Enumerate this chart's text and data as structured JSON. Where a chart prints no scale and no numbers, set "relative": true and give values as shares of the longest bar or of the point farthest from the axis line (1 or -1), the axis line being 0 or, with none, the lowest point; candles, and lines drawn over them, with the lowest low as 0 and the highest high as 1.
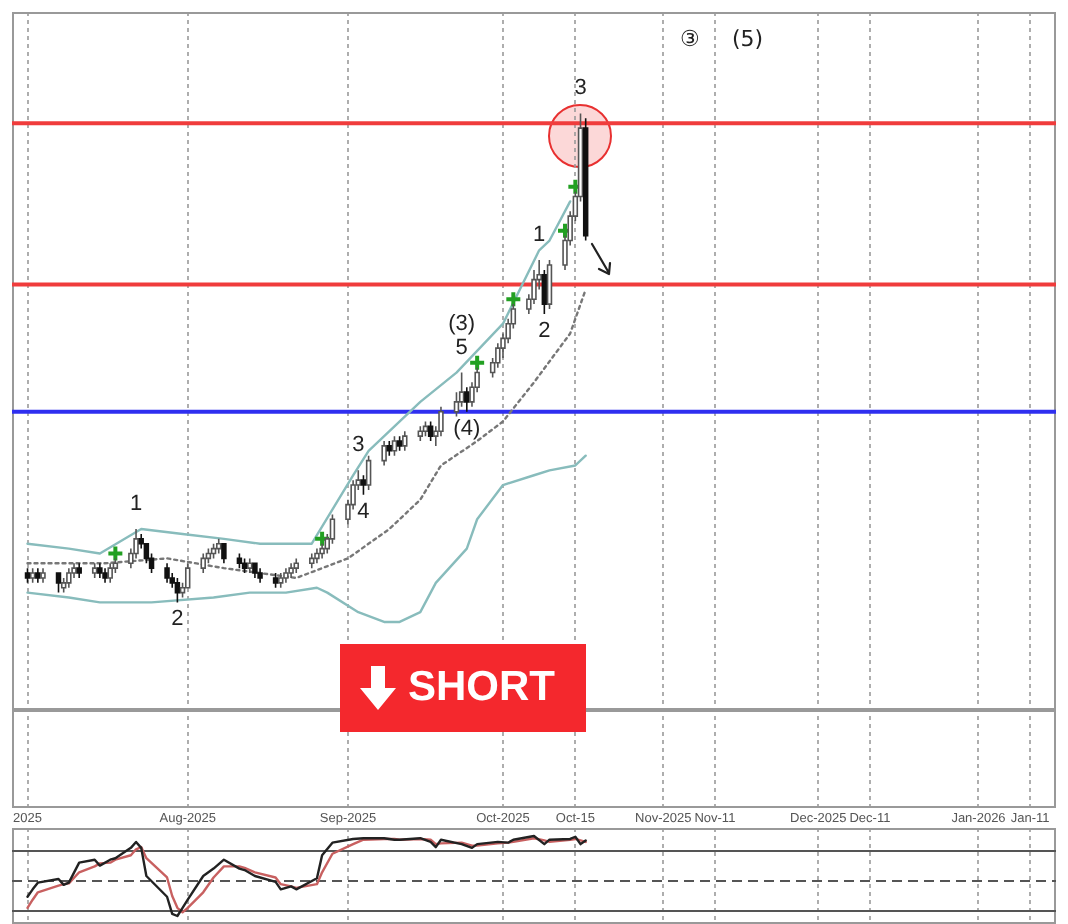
{
  "chart_data": [
    {
      "type": "candlestick",
      "relative": true,
      "x": [
        "2025-07-01",
        "2025-07-02",
        "2025-07-03",
        "2025-07-04",
        "2025-07-07",
        "2025-07-08",
        "2025-07-09",
        "2025-07-10",
        "2025-07-11",
        "2025-07-14",
        "2025-07-15",
        "2025-07-16",
        "2025-07-17",
        "2025-07-18",
        "2025-07-21",
        "2025-07-22",
        "2025-07-23",
        "2025-07-24",
        "2025-07-25",
        "2025-07-28",
        "2025-07-29",
        "2025-07-30",
        "2025-07-31",
        "2025-08-01",
        "2025-08-04",
        "2025-08-05",
        "2025-08-06",
        "2025-08-07",
        "2025-08-08",
        "2025-08-11",
        "2025-08-12",
        "2025-08-13",
        "2025-08-14",
        "2025-08-15",
        "2025-08-18",
        "2025-08-19",
        "2025-08-20",
        "2025-08-21",
        "2025-08-22",
        "2025-08-25",
        "2025-08-26",
        "2025-08-27",
        "2025-08-28",
        "2025-08-29",
        "2025-09-01",
        "2025-09-02",
        "2025-09-03",
        "2025-09-04",
        "2025-09-05",
        "2025-09-08",
        "2025-09-09",
        "2025-09-10",
        "2025-09-11",
        "2025-09-12",
        "2025-09-15",
        "2025-09-16",
        "2025-09-17",
        "2025-09-18",
        "2025-09-19",
        "2025-09-22",
        "2025-09-23",
        "2025-09-24",
        "2025-09-25",
        "2025-09-26",
        "2025-09-29",
        "2025-09-30",
        "2025-10-01",
        "2025-10-02",
        "2025-10-03",
        "2025-10-06",
        "2025-10-07",
        "2025-10-08",
        "2025-10-09",
        "2025-10-10",
        "2025-10-13",
        "2025-10-14",
        "2025-10-15",
        "2025-10-16",
        "2025-10-17"
      ],
      "ohlc": [
        [
          0.06,
          0.07,
          0.04,
          0.05
        ],
        [
          0.05,
          0.07,
          0.04,
          0.06
        ],
        [
          0.06,
          0.07,
          0.04,
          0.05
        ],
        [
          0.05,
          0.07,
          0.04,
          0.06
        ],
        [
          0.06,
          0.06,
          0.02,
          0.04
        ],
        [
          0.03,
          0.05,
          0.02,
          0.04
        ],
        [
          0.04,
          0.07,
          0.03,
          0.06
        ],
        [
          0.06,
          0.08,
          0.05,
          0.07
        ],
        [
          0.07,
          0.08,
          0.05,
          0.06
        ],
        [
          0.06,
          0.08,
          0.05,
          0.07
        ],
        [
          0.07,
          0.08,
          0.05,
          0.06
        ],
        [
          0.06,
          0.07,
          0.04,
          0.05
        ],
        [
          0.05,
          0.08,
          0.04,
          0.07
        ],
        [
          0.07,
          0.09,
          0.06,
          0.08
        ],
        [
          0.08,
          0.11,
          0.07,
          0.1
        ],
        [
          0.1,
          0.15,
          0.09,
          0.13
        ],
        [
          0.13,
          0.14,
          0.11,
          0.12
        ],
        [
          0.12,
          0.12,
          0.08,
          0.09
        ],
        [
          0.09,
          0.1,
          0.06,
          0.07
        ],
        [
          0.07,
          0.08,
          0.04,
          0.05
        ],
        [
          0.05,
          0.06,
          0.03,
          0.04
        ],
        [
          0.04,
          0.05,
          0.0,
          0.02
        ],
        [
          0.02,
          0.04,
          0.01,
          0.03
        ],
        [
          0.03,
          0.08,
          0.03,
          0.07
        ],
        [
          0.07,
          0.1,
          0.06,
          0.09
        ],
        [
          0.09,
          0.11,
          0.08,
          0.1
        ],
        [
          0.1,
          0.12,
          0.09,
          0.11
        ],
        [
          0.11,
          0.13,
          0.1,
          0.12
        ],
        [
          0.12,
          0.12,
          0.08,
          0.09
        ],
        [
          0.09,
          0.1,
          0.07,
          0.08
        ],
        [
          0.08,
          0.09,
          0.06,
          0.07
        ],
        [
          0.07,
          0.09,
          0.06,
          0.08
        ],
        [
          0.08,
          0.08,
          0.05,
          0.06
        ],
        [
          0.06,
          0.07,
          0.04,
          0.05
        ],
        [
          0.05,
          0.06,
          0.03,
          0.04
        ],
        [
          0.04,
          0.06,
          0.03,
          0.05
        ],
        [
          0.05,
          0.07,
          0.04,
          0.06
        ],
        [
          0.06,
          0.08,
          0.05,
          0.07
        ],
        [
          0.07,
          0.09,
          0.06,
          0.08
        ],
        [
          0.08,
          0.1,
          0.07,
          0.09
        ],
        [
          0.09,
          0.11,
          0.08,
          0.1
        ],
        [
          0.1,
          0.12,
          0.09,
          0.11
        ],
        [
          0.11,
          0.14,
          0.1,
          0.13
        ],
        [
          0.13,
          0.18,
          0.12,
          0.17
        ],
        [
          0.17,
          0.21,
          0.16,
          0.2
        ],
        [
          0.2,
          0.25,
          0.19,
          0.24
        ],
        [
          0.24,
          0.27,
          0.23,
          0.25
        ],
        [
          0.25,
          0.26,
          0.22,
          0.24
        ],
        [
          0.24,
          0.3,
          0.23,
          0.29
        ],
        [
          0.29,
          0.33,
          0.28,
          0.32
        ],
        [
          0.32,
          0.33,
          0.3,
          0.31
        ],
        [
          0.31,
          0.34,
          0.3,
          0.33
        ],
        [
          0.33,
          0.34,
          0.31,
          0.32
        ],
        [
          0.32,
          0.35,
          0.31,
          0.34
        ],
        [
          0.34,
          0.36,
          0.33,
          0.35
        ],
        [
          0.35,
          0.37,
          0.34,
          0.36
        ],
        [
          0.36,
          0.37,
          0.33,
          0.34
        ],
        [
          0.34,
          0.36,
          0.32,
          0.35
        ],
        [
          0.35,
          0.4,
          0.34,
          0.39
        ],
        [
          0.39,
          0.43,
          0.38,
          0.41
        ],
        [
          0.41,
          0.47,
          0.4,
          0.43
        ],
        [
          0.43,
          0.44,
          0.39,
          0.41
        ],
        [
          0.41,
          0.45,
          0.4,
          0.44
        ],
        [
          0.44,
          0.48,
          0.43,
          0.47
        ],
        [
          0.47,
          0.5,
          0.46,
          0.49
        ],
        [
          0.49,
          0.53,
          0.48,
          0.52
        ],
        [
          0.52,
          0.55,
          0.5,
          0.54
        ],
        [
          0.54,
          0.58,
          0.53,
          0.57
        ],
        [
          0.57,
          0.61,
          0.56,
          0.6
        ],
        [
          0.6,
          0.63,
          0.59,
          0.62
        ],
        [
          0.62,
          0.68,
          0.61,
          0.66
        ],
        [
          0.66,
          0.7,
          0.64,
          0.67
        ],
        [
          0.67,
          0.68,
          0.59,
          0.61
        ],
        [
          0.61,
          0.7,
          0.6,
          0.69
        ],
        [
          0.69,
          0.75,
          0.68,
          0.74
        ],
        [
          0.74,
          0.8,
          0.73,
          0.79
        ],
        [
          0.79,
          0.84,
          0.78,
          0.83
        ],
        [
          0.83,
          1.0,
          0.82,
          0.97
        ],
        [
          0.97,
          0.99,
          0.74,
          0.75
        ]
      ],
      "series": [
        {
          "type": "line",
          "color": "#88bcbc",
          "x": [
            "2025-07-01",
            "2025-07-09",
            "2025-07-15",
            "2025-07-23",
            "2025-07-31",
            "2025-08-08",
            "2025-08-15",
            "2025-08-22",
            "2025-08-25",
            "2025-09-02",
            "2025-09-05",
            "2025-09-10",
            "2025-09-15",
            "2025-09-22",
            "2025-10-01",
            "2025-10-08",
            "2025-10-10",
            "2025-10-14"
          ],
          "values": [
            0.12,
            0.11,
            0.1,
            0.15,
            0.14,
            0.13,
            0.12,
            0.12,
            0.12,
            0.26,
            0.31,
            0.36,
            0.41,
            0.47,
            0.57,
            0.72,
            0.74,
            0.82
          ]
        },
        {
          "type": "line",
          "color": "#88bcbc",
          "x": [
            "2025-07-01",
            "2025-07-09",
            "2025-07-15",
            "2025-07-25",
            "2025-08-06",
            "2025-08-13",
            "2025-08-20",
            "2025-08-26",
            "2025-08-28",
            "2025-09-03",
            "2025-09-08",
            "2025-09-11",
            "2025-09-15",
            "2025-09-18",
            "2025-09-24",
            "2025-09-26",
            "2025-10-01",
            "2025-10-07",
            "2025-10-10",
            "2025-10-15",
            "2025-10-17"
          ],
          "values": [
            0.02,
            0.01,
            0.0,
            0.0,
            0.01,
            0.02,
            0.02,
            0.03,
            0.02,
            -0.02,
            -0.04,
            -0.04,
            -0.02,
            0.04,
            0.11,
            0.17,
            0.24,
            0.26,
            0.27,
            0.28,
            0.3
          ]
        },
        {
          "type": "line",
          "color": "#777777",
          "line_style": "dotted",
          "x": [
            "2025-07-01",
            "2025-07-16",
            "2025-07-28",
            "2025-08-08",
            "2025-08-22",
            "2025-09-01",
            "2025-09-09",
            "2025-09-15",
            "2025-09-19",
            "2025-09-26",
            "2025-10-01",
            "2025-10-07",
            "2025-10-14",
            "2025-10-17"
          ],
          "values": [
            0.08,
            0.08,
            0.09,
            0.07,
            0.05,
            0.09,
            0.15,
            0.21,
            0.28,
            0.33,
            0.37,
            0.45,
            0.55,
            0.64
          ]
        },
        {
          "type": "scatter",
          "marker": "cross",
          "color": "#22a022",
          "x": [
            "2025-07-18",
            "2025-08-27",
            "2025-09-26",
            "2025-10-03",
            "2025-10-13",
            "2025-10-15"
          ],
          "values": [
            0.1,
            0.13,
            0.49,
            0.62,
            0.76,
            0.85
          ]
        }
      ],
      "xlim": [
        "2025-06-28",
        "2026-01-16"
      ],
      "xticks": [
        {
          "value": "2025-07-01",
          "label": "2025"
        },
        {
          "value": "2025-08-01",
          "label": "Aug-2025"
        },
        {
          "value": "2025-09-01",
          "label": "Sep-2025"
        },
        {
          "value": "2025-10-01",
          "label": "Oct-2025"
        },
        {
          "value": "2025-10-15",
          "label": "Oct-15"
        },
        {
          "value": "2025-11-01",
          "label": "Nov-2025"
        },
        {
          "value": "2025-11-11",
          "label": "Nov-11"
        },
        {
          "value": "2025-12-01",
          "label": "Dec-2025"
        },
        {
          "value": "2025-12-11",
          "label": "Dec-11"
        },
        {
          "value": "2026-01-01",
          "label": "Jan-2026"
        },
        {
          "value": "2026-01-11",
          "label": "Jan-11"
        }
      ],
      "grid": "x",
      "tick_labels": "x",
      "ref_lines": [
        {
          "axis": "y",
          "value": 0.98,
          "color": "#f03c3c"
        },
        {
          "axis": "y",
          "value": 0.65,
          "color": "#f03c3c"
        },
        {
          "axis": "y",
          "value": 0.39,
          "color": "#2f2ff0"
        },
        {
          "axis": "y",
          "value": -0.22,
          "color": "#999999"
        }
      ],
      "annotations": [
        "SHORT",
        "③",
        "(5)",
        {
          "text": "1",
          "x": "2025-07-22",
          "y": 0.15
        },
        {
          "text": "2",
          "x": "2025-07-30",
          "y": 0.0
        },
        {
          "text": "3",
          "x": "2025-09-03",
          "y": 0.27
        },
        {
          "text": "4",
          "x": "2025-09-04",
          "y": 0.22
        },
        {
          "text": "5",
          "x": "2025-09-23",
          "y": 0.47
        },
        {
          "text": "(3)",
          "x": "2025-09-23",
          "y": 0.47
        },
        {
          "text": "(4)",
          "x": "2025-09-24",
          "y": 0.39
        },
        {
          "text": "1",
          "x": "2025-10-08",
          "y": 0.7
        },
        {
          "text": "2",
          "x": "2025-10-09",
          "y": 0.59
        },
        {
          "text": "3",
          "x": "2025-10-16",
          "y": 1.0
        }
      ]
    },
    {
      "type": "line",
      "relative": true,
      "x": [
        "2025-07-01",
        "2025-07-02",
        "2025-07-03",
        "2025-07-07",
        "2025-07-08",
        "2025-07-09",
        "2025-07-11",
        "2025-07-14",
        "2025-07-15",
        "2025-07-17",
        "2025-07-18",
        "2025-07-21",
        "2025-07-22",
        "2025-07-23",
        "2025-07-24",
        "2025-07-28",
        "2025-07-29",
        "2025-07-30",
        "2025-07-31",
        "2025-08-01",
        "2025-08-04",
        "2025-08-06",
        "2025-08-08",
        "2025-08-11",
        "2025-08-12",
        "2025-08-14",
        "2025-08-18",
        "2025-08-19",
        "2025-08-21",
        "2025-08-22",
        "2025-08-26",
        "2025-08-27",
        "2025-08-29",
        "2025-09-02",
        "2025-09-04",
        "2025-09-08",
        "2025-09-10",
        "2025-09-11",
        "2025-09-15",
        "2025-09-17",
        "2025-09-18",
        "2025-09-19",
        "2025-09-23",
        "2025-09-25",
        "2025-09-26",
        "2025-09-30",
        "2025-10-02",
        "2025-10-03",
        "2025-10-07",
        "2025-10-09",
        "2025-10-10",
        "2025-10-14",
        "2025-10-15",
        "2025-10-16",
        "2025-10-17"
      ],
      "series": [
        {
          "color": "#222222",
          "values": [
            0.18,
            0.28,
            0.37,
            0.42,
            0.34,
            0.37,
            0.64,
            0.68,
            0.6,
            0.68,
            0.7,
            0.84,
            0.92,
            0.84,
            0.46,
            0.18,
            -0.05,
            -0.08,
            0.03,
            0.14,
            0.46,
            0.56,
            0.68,
            0.56,
            0.54,
            0.46,
            0.38,
            0.28,
            0.32,
            0.28,
            0.43,
            0.74,
            0.91,
            0.96,
            0.97,
            0.97,
            0.95,
            0.95,
            0.97,
            0.92,
            0.85,
            0.95,
            0.89,
            0.84,
            0.89,
            0.92,
            0.91,
            0.95,
            1.0,
            0.89,
            0.95,
            0.96,
            0.99,
            0.89,
            0.94
          ]
        },
        {
          "color": "#c86060",
          "values": [
            0.03,
            0.14,
            0.24,
            0.33,
            0.35,
            0.36,
            0.51,
            0.59,
            0.63,
            0.64,
            0.68,
            0.74,
            0.82,
            0.85,
            0.7,
            0.44,
            0.19,
            0.03,
            -0.03,
            0.03,
            0.24,
            0.44,
            0.59,
            0.59,
            0.57,
            0.51,
            0.44,
            0.35,
            0.32,
            0.3,
            0.35,
            0.51,
            0.76,
            0.89,
            0.95,
            0.96,
            0.96,
            0.95,
            0.96,
            0.95,
            0.89,
            0.9,
            0.91,
            0.87,
            0.87,
            0.9,
            0.91,
            0.92,
            0.97,
            0.94,
            0.92,
            0.95,
            0.96,
            0.94,
            0.92
          ]
        }
      ],
      "xlim": [
        "2025-06-28",
        "2026-01-16"
      ],
      "xticks": [
        {
          "value": "2025-07-01",
          "label": null
        },
        {
          "value": "2025-08-01",
          "label": null
        },
        {
          "value": "2025-09-01",
          "label": null
        },
        {
          "value": "2025-10-01",
          "label": null
        },
        {
          "value": "2025-10-15",
          "label": null
        },
        {
          "value": "2025-11-01",
          "label": null
        },
        {
          "value": "2025-11-11",
          "label": null
        },
        {
          "value": "2025-12-01",
          "label": null
        },
        {
          "value": "2025-12-11",
          "label": null
        },
        {
          "value": "2026-01-01",
          "label": null
        },
        {
          "value": "2026-01-11",
          "label": null
        }
      ],
      "grid": "x",
      "tick_labels": false,
      "ref_lines": [
        {
          "axis": "y",
          "value": 0.81,
          "color": "#555555",
          "line_style": "solid"
        },
        {
          "axis": "y",
          "value": 0.4,
          "color": "#555555",
          "line_style": "dashed"
        }
      ]
    }
  ]
}
